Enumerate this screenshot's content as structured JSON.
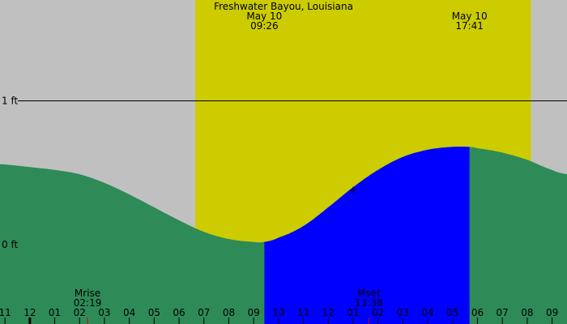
{
  "chart_data": {
    "type": "area",
    "title": "Freshwater Bayou, Louisiana",
    "colors": {
      "background": "#c0c0c0",
      "daylight": "#cccc00",
      "tide": "#2e8b57",
      "highlight": "#0000ff",
      "moon_tick": "#cc0000",
      "text": "#000000"
    },
    "x_range_hours": [
      -9.2,
      13.6
    ],
    "ylim_ft": [
      -0.55,
      1.7
    ],
    "y_ticks": [
      {
        "value": 0,
        "label": "0 ft"
      },
      {
        "value": 1,
        "label": "1 ft"
      }
    ],
    "y_reference_line": 1,
    "x_ticks": [
      {
        "h": -9,
        "label": "11"
      },
      {
        "h": -8,
        "label": "12"
      },
      {
        "h": -7,
        "label": "01"
      },
      {
        "h": -6,
        "label": "02"
      },
      {
        "h": -5,
        "label": "03"
      },
      {
        "h": -4,
        "label": "04"
      },
      {
        "h": -3,
        "label": "05"
      },
      {
        "h": -2,
        "label": "06"
      },
      {
        "h": -1,
        "label": "07"
      },
      {
        "h": 0,
        "label": "08"
      },
      {
        "h": 1,
        "label": "09"
      },
      {
        "h": 2,
        "label": "10"
      },
      {
        "h": 3,
        "label": "11"
      },
      {
        "h": 4,
        "label": "12"
      },
      {
        "h": 5,
        "label": "01"
      },
      {
        "h": 6,
        "label": "02"
      },
      {
        "h": 7,
        "label": "03"
      },
      {
        "h": 8,
        "label": "04"
      },
      {
        "h": 9,
        "label": "05"
      },
      {
        "h": 10,
        "label": "06"
      },
      {
        "h": 11,
        "label": "07"
      },
      {
        "h": 12,
        "label": "08"
      },
      {
        "h": 13,
        "label": "09"
      }
    ],
    "daylight": {
      "start_h": -1.35,
      "end_h": 12.15
    },
    "highlight_range": {
      "start_h": 1.43,
      "end_h": 9.68
    },
    "tide_series": {
      "x_hours": [
        -9.2,
        -8,
        -7,
        -6,
        -5,
        -4,
        -3,
        -2,
        -1,
        0,
        1,
        1.43,
        2,
        3,
        4,
        5,
        6,
        7,
        8,
        9,
        9.68,
        10,
        11,
        12,
        13,
        13.6
      ],
      "y_ft": [
        0.56,
        0.54,
        0.52,
        0.49,
        0.43,
        0.35,
        0.26,
        0.17,
        0.09,
        0.04,
        0.02,
        0.02,
        0.05,
        0.13,
        0.26,
        0.4,
        0.52,
        0.61,
        0.66,
        0.68,
        0.68,
        0.67,
        0.64,
        0.59,
        0.52,
        0.49
      ]
    },
    "current_marker": {
      "h": 5.0,
      "y_ft": 0.38
    },
    "time_labels": [
      {
        "h": 1.43,
        "date": "May 10",
        "time": "09:26"
      },
      {
        "h": 9.68,
        "date": "May 10",
        "time": "17:41"
      }
    ],
    "moon_events": [
      {
        "h": -5.68,
        "label": "Mrise",
        "time": "02:19"
      },
      {
        "h": 5.63,
        "label": "Mset",
        "time": "13:38"
      }
    ],
    "midnight_h": -8
  }
}
